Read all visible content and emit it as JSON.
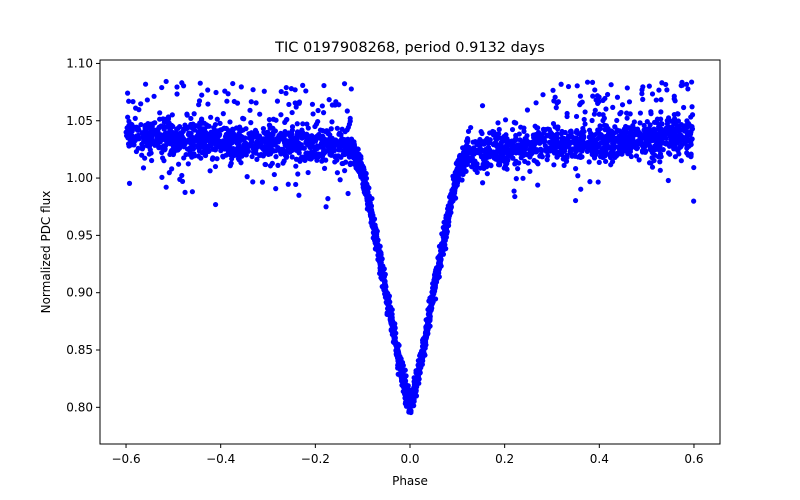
{
  "chart_data": {
    "type": "scatter",
    "title": "TIC 0197908268, period 0.9132 days",
    "xlabel": "Phase",
    "ylabel": "Normalized PDC flux",
    "xlim": [
      -0.655,
      0.655
    ],
    "ylim": [
      0.768,
      1.103
    ],
    "x_ticks": [
      -0.6,
      -0.4,
      -0.2,
      0.0,
      0.2,
      0.4,
      0.6
    ],
    "x_tick_labels": [
      "−0.6",
      "−0.4",
      "−0.2",
      "0.0",
      "0.2",
      "0.4",
      "0.6"
    ],
    "y_ticks": [
      0.8,
      0.85,
      0.9,
      0.95,
      1.0,
      1.05,
      1.1
    ],
    "y_tick_labels": [
      "0.80",
      "0.85",
      "0.90",
      "0.95",
      "1.00",
      "1.05",
      "1.10"
    ],
    "grid": false,
    "marker_color": "#0000ff",
    "series": [
      {
        "marker": "circle",
        "model": {
          "out_of_eclipse_left": [
            [
              -0.6,
              1.037
            ],
            [
              -0.4,
              1.033
            ],
            [
              -0.2,
              1.028
            ],
            [
              -0.12,
              1.026
            ]
          ],
          "out_of_eclipse_right": [
            [
              0.12,
              1.022
            ],
            [
              0.3,
              1.029
            ],
            [
              0.45,
              1.033
            ],
            [
              0.6,
              1.037
            ]
          ],
          "eclipse_profile": [
            [
              -0.12,
              1.024
            ],
            [
              -0.1,
              1.005
            ],
            [
              -0.075,
              0.955
            ],
            [
              -0.05,
              0.9
            ],
            [
              -0.025,
              0.845
            ],
            [
              -0.008,
              0.812
            ],
            [
              0.0,
              0.802
            ],
            [
              0.008,
              0.812
            ],
            [
              0.025,
              0.845
            ],
            [
              0.05,
              0.9
            ],
            [
              0.075,
              0.955
            ],
            [
              0.1,
              1.005
            ],
            [
              0.12,
              1.022
            ]
          ],
          "min_flux": 0.778,
          "max_flux_outliers": 1.085,
          "typical_scatter": 0.008
        }
      }
    ]
  }
}
